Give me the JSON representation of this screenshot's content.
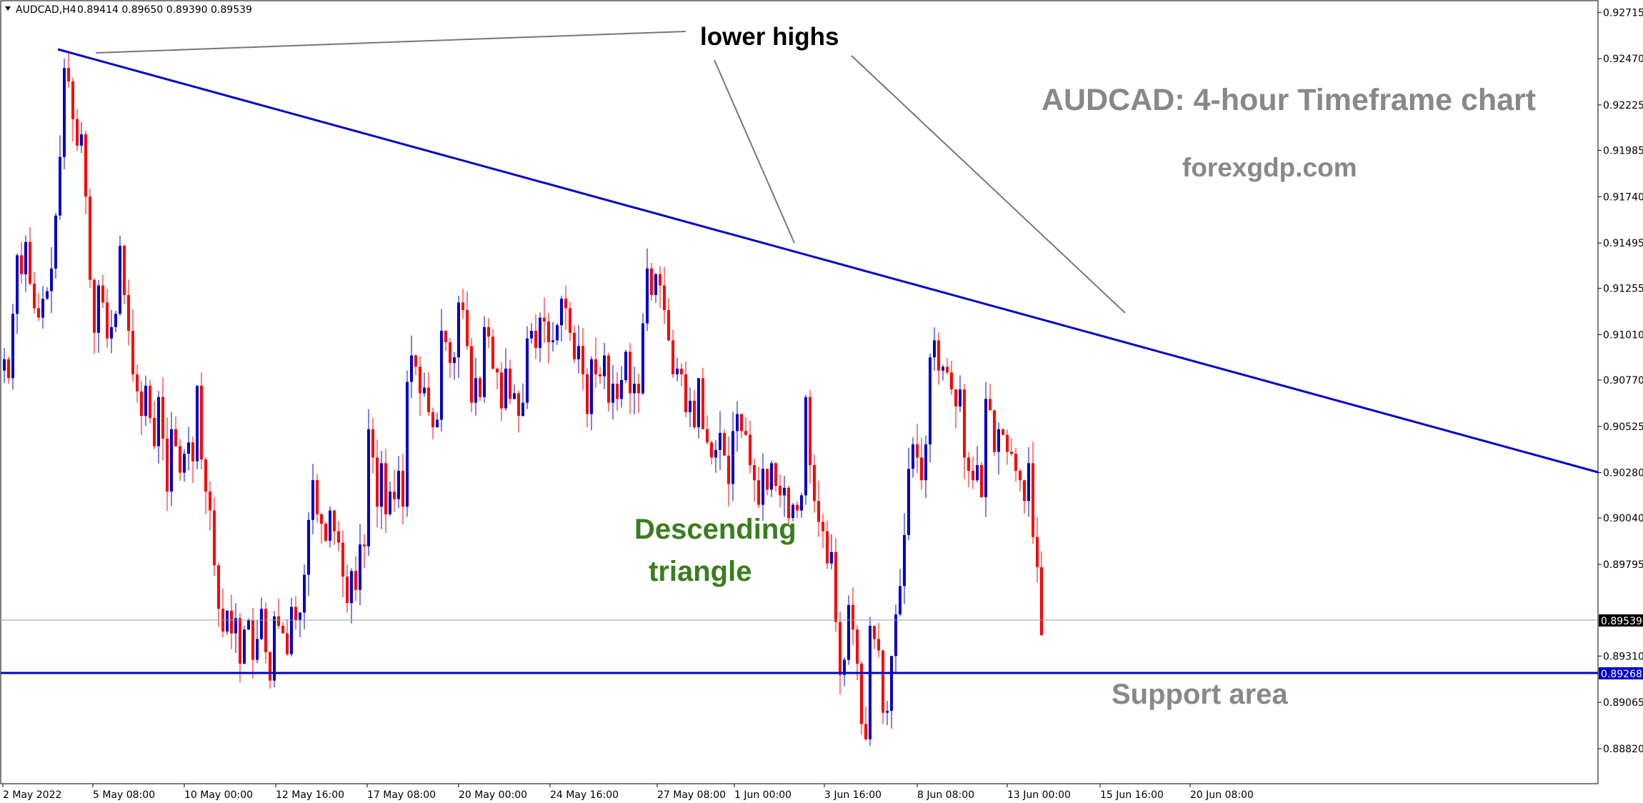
{
  "header": {
    "symbol": "AUDCAD,H4",
    "ohlc": "0.89414 0.89650 0.89390 0.89539"
  },
  "annotations": {
    "lower_highs": "lower highs",
    "title": "AUDCAD: 4-hour Timeframe chart",
    "site": "forexgdp.com",
    "pattern_line1": "Descending",
    "pattern_line2": "triangle",
    "support": "Support area"
  },
  "price_tags": {
    "current": "0.89539",
    "support": "0.89268"
  },
  "colors": {
    "bull": "#0000cc",
    "bear": "#ff0000",
    "trendline": "#0000cc",
    "pattern_text": "#3a7d1e",
    "annotation_gray": "#888888"
  },
  "chart_data": {
    "type": "candlestick",
    "symbol": "AUDCAD",
    "timeframe": "H4",
    "ylim": [
      0.8868,
      0.9275
    ],
    "y_ticks": [
      "0.92715",
      "0.92470",
      "0.92225",
      "0.91985",
      "0.91740",
      "0.91495",
      "0.91255",
      "0.91010",
      "0.90770",
      "0.90525",
      "0.90280",
      "0.90040",
      "0.89795",
      "0.89310",
      "0.89065",
      "0.88820"
    ],
    "x_ticks": [
      "2 May 2022",
      "5 May 08:00",
      "10 May 00:00",
      "12 May 16:00",
      "17 May 08:00",
      "20 May 00:00",
      "24 May 16:00",
      "27 May 08:00",
      "1 Jun 00:00",
      "3 Jun 16:00",
      "8 Jun 08:00",
      "13 Jun 00:00",
      "15 Jun 16:00",
      "20 Jun 08:00"
    ],
    "current_price": 0.89539,
    "support_level": 0.89268,
    "trendline": {
      "from": {
        "bar": 12,
        "price": 0.925
      },
      "to": {
        "bar": 287,
        "price": 0.903
      }
    },
    "closes": [
      0.9088,
      0.9078,
      0.9112,
      0.9143,
      0.9133,
      0.915,
      0.9128,
      0.9115,
      0.911,
      0.912,
      0.9124,
      0.9136,
      0.9164,
      0.9195,
      0.9242,
      0.9235,
      0.9215,
      0.9201,
      0.9207,
      0.9174,
      0.913,
      0.9102,
      0.9127,
      0.9118,
      0.9099,
      0.9105,
      0.9112,
      0.9148,
      0.9122,
      0.9103,
      0.908,
      0.9071,
      0.9058,
      0.9074,
      0.9057,
      0.9042,
      0.9068,
      0.9046,
      0.9018,
      0.9051,
      0.9042,
      0.9028,
      0.9038,
      0.9044,
      0.9034,
      0.9074,
      0.9035,
      0.9018,
      0.9008,
      0.8979,
      0.8956,
      0.8944,
      0.8955,
      0.8943,
      0.8951,
      0.8927,
      0.8945,
      0.895,
      0.8929,
      0.894,
      0.8956,
      0.8933,
      0.8918,
      0.8952,
      0.8947,
      0.8943,
      0.8932,
      0.8957,
      0.895,
      0.8954,
      0.8974,
      0.9003,
      0.9024,
      0.9006,
      0.9001,
      0.8992,
      0.9008,
      0.8997,
      0.8991,
      0.8973,
      0.8959,
      0.8976,
      0.8966,
      0.899,
      0.8989,
      0.9051,
      0.9036,
      0.901,
      0.9033,
      0.9006,
      0.9018,
      0.9014,
      0.9029,
      0.901,
      0.9076,
      0.909,
      0.9084,
      0.907,
      0.9073,
      0.906,
      0.9052,
      0.9056,
      0.9103,
      0.9097,
      0.9086,
      0.9089,
      0.9118,
      0.9114,
      0.9095,
      0.9065,
      0.9078,
      0.9068,
      0.9105,
      0.91,
      0.9083,
      0.9081,
      0.9062,
      0.9083,
      0.9067,
      0.907,
      0.9058,
      0.9065,
      0.9099,
      0.9103,
      0.9094,
      0.911,
      0.9108,
      0.9097,
      0.9098,
      0.9106,
      0.912,
      0.9115,
      0.9102,
      0.9088,
      0.9095,
      0.908,
      0.9059,
      0.9088,
      0.908,
      0.9079,
      0.909,
      0.9065,
      0.9075,
      0.9067,
      0.9077,
      0.9092,
      0.907,
      0.9075,
      0.907,
      0.9107,
      0.9136,
      0.9122,
      0.9133,
      0.9127,
      0.9114,
      0.9098,
      0.908,
      0.9083,
      0.908,
      0.906,
      0.9066,
      0.9052,
      0.9078,
      0.9051,
      0.9044,
      0.9036,
      0.904,
      0.9049,
      0.9037,
      0.9022,
      0.905,
      0.9059,
      0.905,
      0.9048,
      0.9032,
      0.9024,
      0.9011,
      0.903,
      0.9019,
      0.9033,
      0.9021,
      0.9016,
      0.902,
      0.9004,
      0.9011,
      0.9008,
      0.9016,
      0.9068,
      0.9032,
      0.9013,
      0.9002,
      0.8997,
      0.898,
      0.8986,
      0.8949,
      0.8921,
      0.8929,
      0.8958,
      0.8945,
      0.8927,
      0.8895,
      0.8887,
      0.8947,
      0.894,
      0.8934,
      0.8901,
      0.8902,
      0.8931,
      0.8953,
      0.8968,
      0.8995,
      0.903,
      0.9043,
      0.9036,
      0.9024,
      0.9043,
      0.9089,
      0.9098,
      0.9082,
      0.9084,
      0.9081,
      0.9072,
      0.9063,
      0.9072,
      0.9036,
      0.9029,
      0.9024,
      0.9032,
      0.9015,
      0.9067,
      0.9061,
      0.9039,
      0.9051,
      0.9048,
      0.9039,
      0.9038,
      0.9029,
      0.9024,
      0.9013,
      0.9033,
      0.8994,
      0.8978,
      0.8942
    ]
  }
}
